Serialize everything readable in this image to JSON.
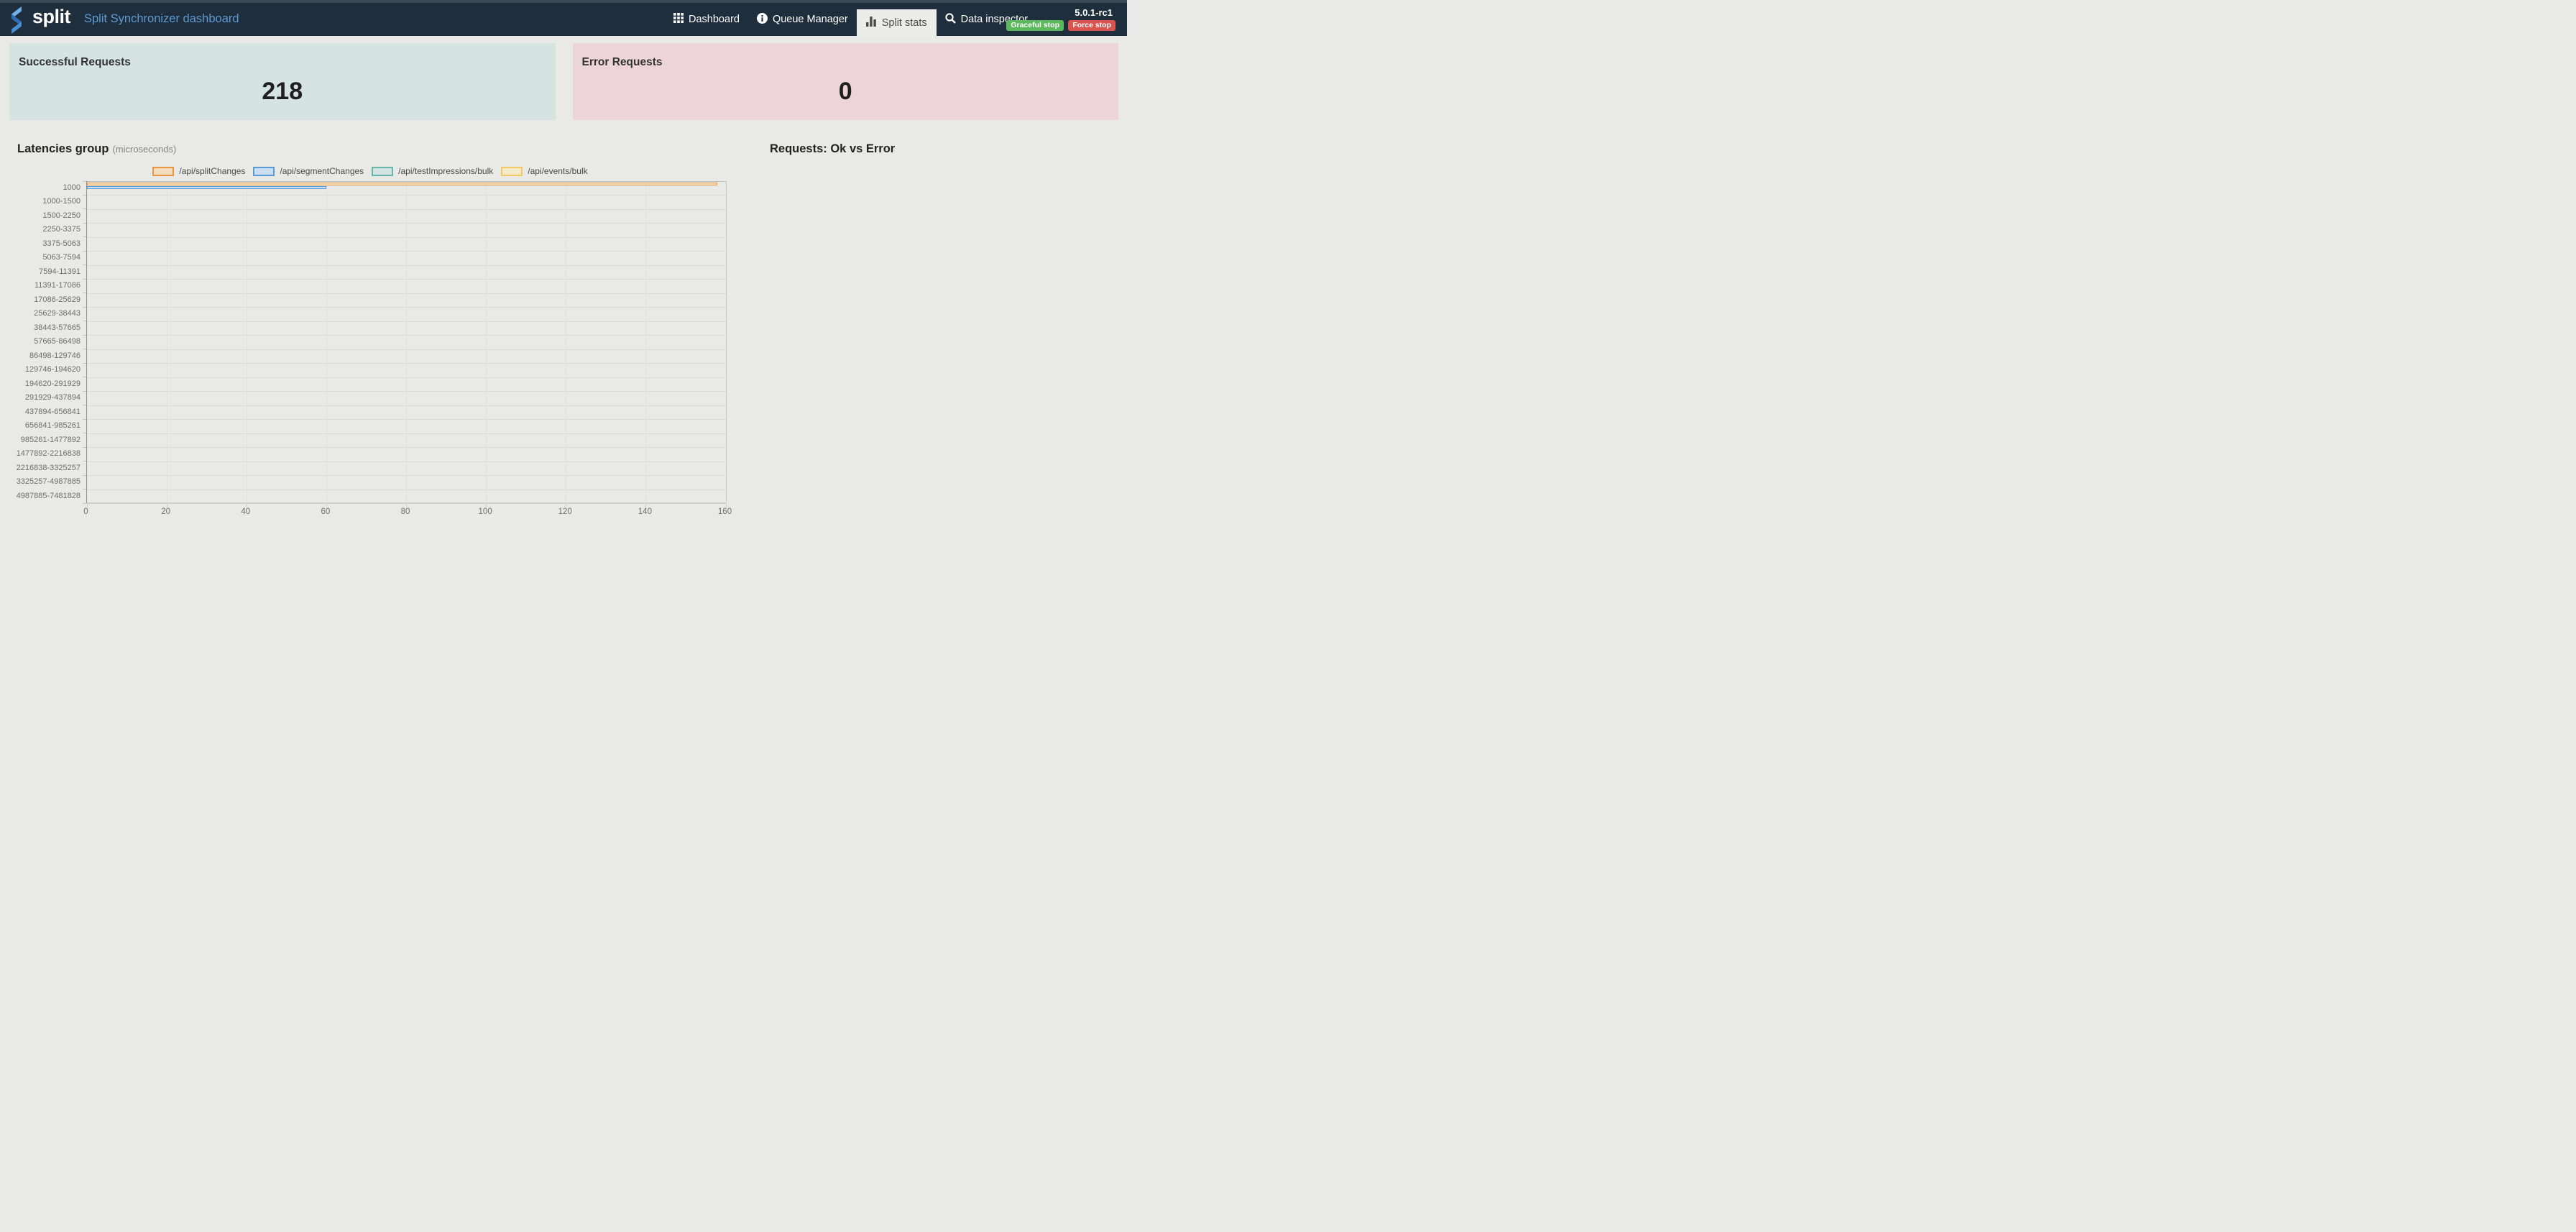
{
  "navbar": {
    "brand": "split",
    "subtitle": "Split Synchronizer dashboard",
    "items": [
      {
        "label": "Dashboard",
        "icon": "grid-icon",
        "active": false
      },
      {
        "label": "Queue Manager",
        "icon": "info-icon",
        "active": false
      },
      {
        "label": "Split stats",
        "icon": "bar-chart-icon",
        "active": true
      },
      {
        "label": "Data inspector",
        "icon": "search-icon",
        "active": false
      }
    ],
    "version": "5.0.1-rc1",
    "buttons": [
      {
        "label": "Graceful stop",
        "color": "#5cb85c"
      },
      {
        "label": "Force stop",
        "color": "#d9534f"
      }
    ]
  },
  "cards": {
    "successful": {
      "label": "Successful Requests",
      "value": "218",
      "bg": "#d5e4e0"
    },
    "error": {
      "label": "Error Requests",
      "value": "0",
      "bg": "#edd3da"
    }
  },
  "sections": {
    "latencies_title": "Latencies group",
    "latencies_units": "(microseconds)",
    "requests_title": "Requests: Ok vs Error"
  },
  "colors": {
    "navbar_bg": "#1f2e3d",
    "subtitle_blue": "#5d9ad2",
    "success_green": "#5cb85c",
    "danger_red": "#d9534f"
  },
  "chart_data": [
    {
      "type": "bar",
      "orientation": "horizontal",
      "title": "Latencies group (microseconds)",
      "legend_position": "top",
      "grid": true,
      "xlim": [
        0,
        160
      ],
      "xticks": [
        0,
        20,
        40,
        60,
        80,
        100,
        120,
        140,
        160
      ],
      "categories": [
        "1000",
        "1000-1500",
        "1500-2250",
        "2250-3375",
        "3375-5063",
        "5063-7594",
        "7594-11391",
        "11391-17086",
        "17086-25629",
        "25629-38443",
        "38443-57665",
        "57665-86498",
        "86498-129746",
        "129746-194620",
        "194620-291929",
        "291929-437894",
        "437894-656841",
        "656841-985261",
        "985261-1477892",
        "1477892-2216838",
        "2216838-3325257",
        "3325257-4987885",
        "4987885-7481828"
      ],
      "series": [
        {
          "name": "/api/splitChanges",
          "border_color": "#e9973e",
          "fill_color": "#f5ddc0",
          "values": [
            158,
            0,
            0,
            0,
            0,
            0,
            0,
            0,
            0,
            0,
            0,
            0,
            0,
            0,
            0,
            0,
            0,
            0,
            0,
            0,
            0,
            0,
            0
          ]
        },
        {
          "name": "/api/segmentChanges",
          "border_color": "#5b9bd5",
          "fill_color": "#cbddf0",
          "values": [
            60,
            0,
            0,
            0,
            0,
            0,
            0,
            0,
            0,
            0,
            0,
            0,
            0,
            0,
            0,
            0,
            0,
            0,
            0,
            0,
            0,
            0,
            0
          ]
        },
        {
          "name": "/api/testImpressions/bulk",
          "border_color": "#67b4ab",
          "fill_color": "#d3e5e2",
          "values": [
            0,
            0,
            0,
            0,
            0,
            0,
            0,
            0,
            0,
            0,
            0,
            0,
            0,
            0,
            0,
            0,
            0,
            0,
            0,
            0,
            0,
            0,
            0
          ]
        },
        {
          "name": "/api/events/bulk",
          "border_color": "#f2c95f",
          "fill_color": "#f3eacc",
          "values": [
            0,
            0,
            0,
            0,
            0,
            0,
            0,
            0,
            0,
            0,
            0,
            0,
            0,
            0,
            0,
            0,
            0,
            0,
            0,
            0,
            0,
            0,
            0
          ]
        }
      ]
    },
    {
      "type": "pie",
      "title": "Requests: Ok vs Error",
      "series": []
    }
  ]
}
